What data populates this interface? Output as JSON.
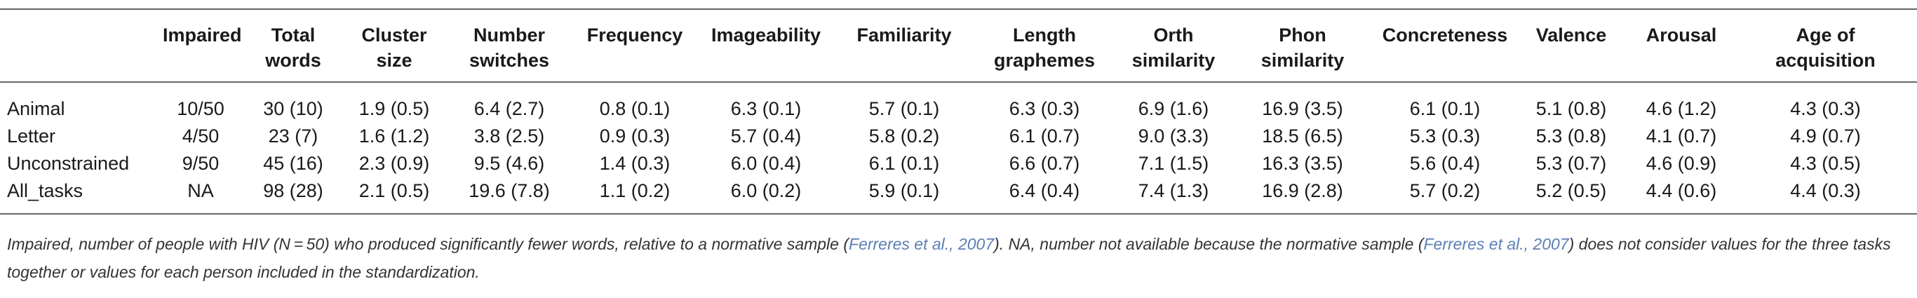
{
  "table": {
    "headers": [
      "",
      "Impaired",
      "Total words",
      "Cluster size",
      "Number switches",
      "Frequency",
      "Imageability",
      "Familiarity",
      "Length graphemes",
      "Orth similarity",
      "Phon similarity",
      "Concreteness",
      "Valence",
      "Arousal",
      "Age of acquisition"
    ],
    "header_lines": [
      [
        ""
      ],
      [
        "Impaired"
      ],
      [
        "Total",
        "words"
      ],
      [
        "Cluster",
        "size"
      ],
      [
        "Number",
        "switches"
      ],
      [
        "Frequency"
      ],
      [
        "Imageability"
      ],
      [
        "Familiarity"
      ],
      [
        "Length",
        "graphemes"
      ],
      [
        "Orth",
        "similarity"
      ],
      [
        "Phon",
        "similarity"
      ],
      [
        "Concreteness"
      ],
      [
        "Valence"
      ],
      [
        "Arousal"
      ],
      [
        "Age of",
        "acquisition"
      ]
    ],
    "rows": [
      [
        "Animal",
        "10/50",
        "30 (10)",
        "1.9 (0.5)",
        "6.4 (2.7)",
        "0.8 (0.1)",
        "6.3 (0.1)",
        "5.7 (0.1)",
        "6.3 (0.3)",
        "6.9 (1.6)",
        "16.9 (3.5)",
        "6.1 (0.1)",
        "5.1 (0.8)",
        "4.6 (1.2)",
        "4.3 (0.3)"
      ],
      [
        "Letter",
        "4/50",
        "23 (7)",
        "1.6 (1.2)",
        "3.8 (2.5)",
        "0.9 (0.3)",
        "5.7 (0.4)",
        "5.8 (0.2)",
        "6.1 (0.7)",
        "9.0 (3.3)",
        "18.5 (6.5)",
        "5.3 (0.3)",
        "5.3 (0.8)",
        "4.1 (0.7)",
        "4.9 (0.7)"
      ],
      [
        "Unconstrained",
        "9/50",
        "45 (16)",
        "2.3 (0.9)",
        "9.5 (4.6)",
        "1.4 (0.3)",
        "6.0 (0.4)",
        "6.1 (0.1)",
        "6.6 (0.7)",
        "7.1 (1.5)",
        "16.3 (3.5)",
        "5.6 (0.4)",
        "5.3 (0.7)",
        "4.6 (0.9)",
        "4.3 (0.5)"
      ],
      [
        "All_tasks",
        "NA",
        "98 (28)",
        "2.1 (0.5)",
        "19.6 (7.8)",
        "1.1 (0.2)",
        "6.0 (0.2)",
        "5.9 (0.1)",
        "6.4 (0.4)",
        "7.4 (1.3)",
        "16.9 (2.8)",
        "5.7 (0.2)",
        "5.2 (0.5)",
        "4.4 (0.6)",
        "4.4 (0.3)"
      ]
    ]
  },
  "footnote": {
    "part1": "Impaired, number of people with HIV (N = 50) who produced significantly fewer words, relative to a normative sample (",
    "cite1": "Ferreres et al., 2007",
    "part2": "). NA, number not available because the normative sample (",
    "cite2": "Ferreres et al., 2007",
    "part3": ") does not consider values for the three tasks together or values for each person included in the standardization."
  }
}
